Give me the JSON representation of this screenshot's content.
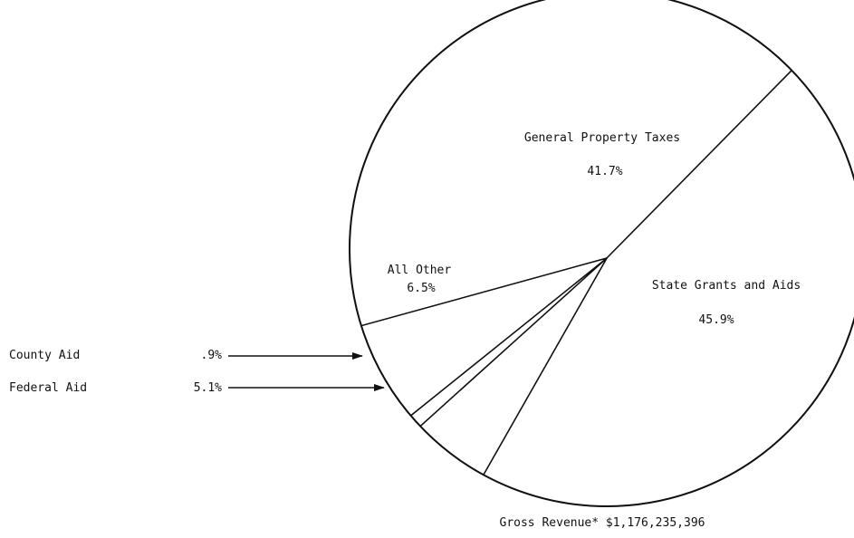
{
  "chart_data": {
    "type": "pie",
    "title": "",
    "caption": "Gross Revenue* $1,176,235,396",
    "slices": [
      {
        "label": "General Property Taxes",
        "value": 41.7,
        "value_label": "41.7%"
      },
      {
        "label": "State Grants and Aids",
        "value": 45.9,
        "value_label": "45.9%"
      },
      {
        "label": "Federal Aid",
        "value": 5.1,
        "value_label": "5.1%"
      },
      {
        "label": "County Aid",
        "value": 0.9,
        "value_label": ".9%"
      },
      {
        "label": "All Other",
        "value": 6.5,
        "value_label": "6.5%"
      }
    ],
    "legend": "none",
    "colors": {
      "line": "#111111",
      "fill": "#ffffff"
    }
  }
}
